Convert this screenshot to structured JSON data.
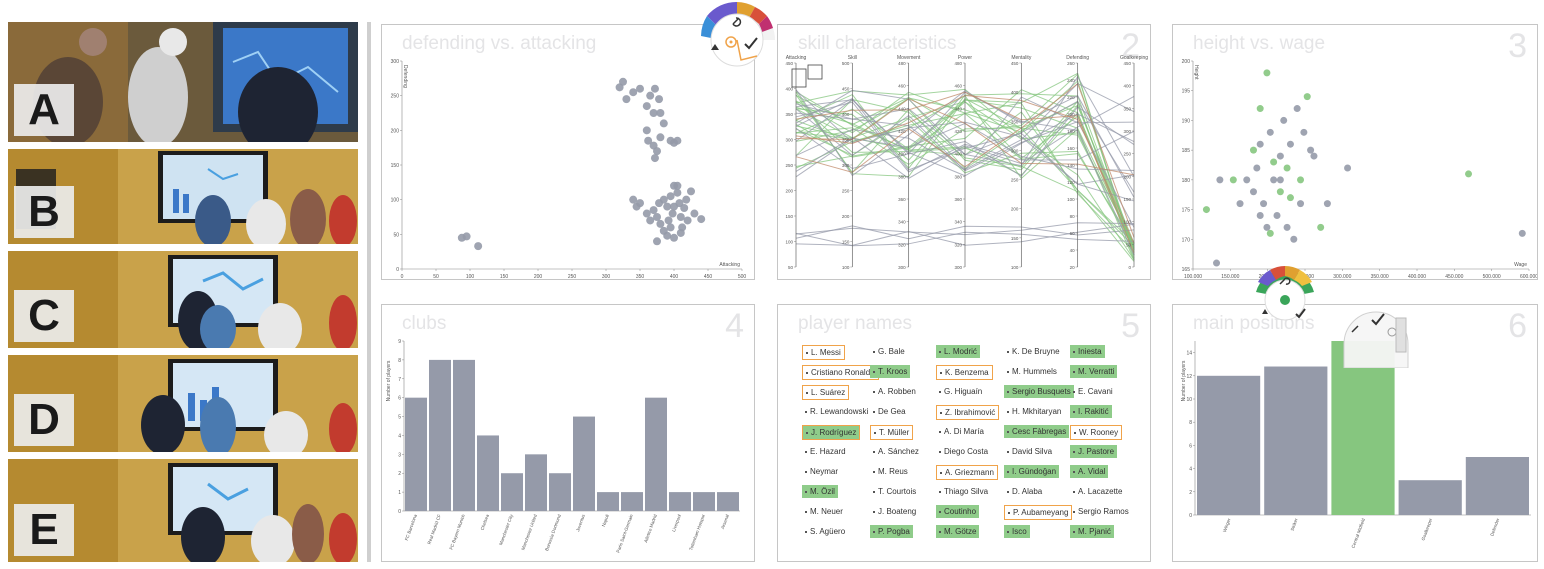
{
  "photos": [
    {
      "letter": "A",
      "top": 0
    },
    {
      "letter": "B"
    },
    {
      "letter": "C"
    },
    {
      "letter": "D"
    },
    {
      "letter": "E"
    }
  ],
  "panels": {
    "p1": {
      "title": "defending vs. attacking",
      "num": "1",
      "xlabel": "Attacking",
      "ylabel": "Defending",
      "xticks": [
        "0",
        "50",
        "100",
        "150",
        "200",
        "250",
        "300",
        "350",
        "400",
        "450",
        "500"
      ],
      "yticks": [
        "0",
        "50",
        "100",
        "150",
        "200",
        "250",
        "300"
      ]
    },
    "p2": {
      "title": "skill characteristics",
      "num": "2"
    },
    "p3": {
      "title": "height vs. wage",
      "num": "3",
      "xlabel": "Wage",
      "ylabel": "Height",
      "xticks": [
        "100.000",
        "150.000",
        "200.000",
        "250.000",
        "300.000",
        "350.000",
        "400.000",
        "450.000",
        "500.000",
        "600.000"
      ],
      "yticks": [
        "165",
        "170",
        "175",
        "180",
        "185",
        "190",
        "195",
        "200"
      ]
    },
    "p4": {
      "title": "clubs",
      "num": "4",
      "ylabel": "Number of players",
      "yticks": [
        "0",
        "1",
        "2",
        "3",
        "4",
        "5",
        "6",
        "7",
        "8",
        "9"
      ]
    },
    "p5": {
      "title": "player names",
      "num": "5"
    },
    "p6": {
      "title": "main positions",
      "num": "6",
      "ylabel": "Number of players",
      "yticks": [
        "0",
        "2",
        "4",
        "6",
        "8",
        "10",
        "12",
        "14"
      ]
    }
  },
  "parallel": {
    "axes": [
      {
        "name": "Attacking",
        "ticks": [
          "450",
          "400",
          "350",
          "300",
          "250",
          "200",
          "150",
          "100",
          "50"
        ]
      },
      {
        "name": "Skill",
        "ticks": [
          "500",
          "450",
          "400",
          "350",
          "300",
          "250",
          "200",
          "150",
          "100"
        ]
      },
      {
        "name": "Movement",
        "ticks": [
          "480",
          "460",
          "440",
          "420",
          "400",
          "380",
          "360",
          "340",
          "320",
          "300"
        ]
      },
      {
        "name": "Power",
        "ticks": [
          "480",
          "460",
          "440",
          "420",
          "400",
          "380",
          "360",
          "340",
          "320",
          "300"
        ]
      },
      {
        "name": "Mentality",
        "ticks": [
          "450",
          "400",
          "350",
          "300",
          "250",
          "200",
          "150",
          "100"
        ]
      },
      {
        "name": "Defending",
        "ticks": [
          "260",
          "240",
          "220",
          "200",
          "180",
          "160",
          "140",
          "120",
          "100",
          "80",
          "60",
          "40",
          "20"
        ]
      },
      {
        "name": "Goalkeeping",
        "ticks": [
          "450",
          "400",
          "350",
          "300",
          "250",
          "200",
          "150",
          "100",
          "50",
          "0"
        ]
      }
    ]
  },
  "chart_data": [
    {
      "type": "scatter",
      "title": "defending vs. attacking",
      "xlabel": "Attacking",
      "ylabel": "Defending",
      "xlim": [
        0,
        500
      ],
      "ylim": [
        0,
        300
      ],
      "points": [
        [
          88,
          45
        ],
        [
          95,
          47
        ],
        [
          112,
          33
        ],
        [
          320,
          262
        ],
        [
          325,
          270
        ],
        [
          330,
          245
        ],
        [
          340,
          255
        ],
        [
          350,
          260
        ],
        [
          360,
          235
        ],
        [
          365,
          250
        ],
        [
          370,
          225
        ],
        [
          372,
          260
        ],
        [
          378,
          245
        ],
        [
          385,
          210
        ],
        [
          360,
          200
        ],
        [
          362,
          185
        ],
        [
          370,
          178
        ],
        [
          372,
          160
        ],
        [
          375,
          170
        ],
        [
          380,
          190
        ],
        [
          395,
          185
        ],
        [
          400,
          182
        ],
        [
          405,
          185
        ],
        [
          380,
          225
        ],
        [
          340,
          100
        ],
        [
          345,
          90
        ],
        [
          350,
          95
        ],
        [
          360,
          80
        ],
        [
          365,
          70
        ],
        [
          370,
          85
        ],
        [
          375,
          75
        ],
        [
          378,
          95
        ],
        [
          380,
          65
        ],
        [
          385,
          100
        ],
        [
          390,
          90
        ],
        [
          392,
          70
        ],
        [
          395,
          105
        ],
        [
          398,
          80
        ],
        [
          400,
          120
        ],
        [
          405,
          110
        ],
        [
          408,
          95
        ],
        [
          410,
          75
        ],
        [
          412,
          60
        ],
        [
          415,
          88
        ],
        [
          418,
          100
        ],
        [
          420,
          70
        ],
        [
          425,
          112
        ],
        [
          430,
          80
        ],
        [
          440,
          72
        ],
        [
          385,
          55
        ],
        [
          390,
          48
        ],
        [
          400,
          45
        ],
        [
          410,
          52
        ],
        [
          375,
          40
        ],
        [
          395,
          60
        ],
        [
          405,
          120
        ],
        [
          400,
          90
        ]
      ]
    },
    {
      "type": "scatter",
      "title": "height vs. wage",
      "xlabel": "Wage",
      "ylabel": "Height",
      "xlim": [
        100000,
        600000
      ],
      "ylim": [
        165,
        200
      ],
      "points": [
        [
          120000,
          175
        ],
        [
          135000,
          166
        ],
        [
          140000,
          180
        ],
        [
          160000,
          180
        ],
        [
          170000,
          176
        ],
        [
          180000,
          180
        ],
        [
          190000,
          185
        ],
        [
          190000,
          178
        ],
        [
          195000,
          182
        ],
        [
          200000,
          192
        ],
        [
          200000,
          186
        ],
        [
          205000,
          176
        ],
        [
          210000,
          198
        ],
        [
          210000,
          172
        ],
        [
          215000,
          188
        ],
        [
          220000,
          183
        ],
        [
          220000,
          180
        ],
        [
          225000,
          174
        ],
        [
          230000,
          178
        ],
        [
          230000,
          184
        ],
        [
          235000,
          190
        ],
        [
          240000,
          182
        ],
        [
          240000,
          172
        ],
        [
          245000,
          186
        ],
        [
          245000,
          177
        ],
        [
          250000,
          170
        ],
        [
          255000,
          192
        ],
        [
          260000,
          180
        ],
        [
          260000,
          176
        ],
        [
          265000,
          188
        ],
        [
          270000,
          194
        ],
        [
          275000,
          185
        ],
        [
          280000,
          184
        ],
        [
          290000,
          172
        ],
        [
          300000,
          176
        ],
        [
          330000,
          182
        ],
        [
          510000,
          181
        ],
        [
          590000,
          171
        ],
        [
          200000,
          174
        ],
        [
          215000,
          171
        ],
        [
          230000,
          180
        ]
      ]
    },
    {
      "type": "bar",
      "title": "clubs",
      "ylabel": "Number of players",
      "ylim": [
        0,
        9
      ],
      "categories": [
        "FC Barcelona",
        "Real Madrid CF",
        "FC Bayern Munich",
        "Chelsea",
        "Manchester City",
        "Manchester United",
        "Borussia Dortmund",
        "Juventus",
        "Napoli",
        "Paris Saint-Germain",
        "Atletico Madrid",
        "Liverpool",
        "Tottenham Hotspur",
        "Arsenal"
      ],
      "values": [
        6,
        8,
        8,
        4,
        2,
        3,
        2,
        5,
        1,
        1,
        6,
        1,
        1,
        1
      ]
    },
    {
      "type": "bar",
      "title": "main positions",
      "ylabel": "Number of players",
      "ylim": [
        0,
        15
      ],
      "categories": [
        "Winger",
        "Striker",
        "Central Midfield",
        "Goalkeeper",
        "Defender"
      ],
      "values": [
        12,
        12.8,
        15,
        3,
        5
      ],
      "highlighted": "Central Midfield"
    }
  ],
  "names": {
    "columns": [
      [
        {
          "name": "L. Messi",
          "sel": true,
          "hl": false
        },
        {
          "name": "Cristiano Ronaldo",
          "sel": true,
          "hl": false
        },
        {
          "name": "L. Suárez",
          "sel": true,
          "hl": false
        },
        {
          "name": "R. Lewandowski",
          "sel": false,
          "hl": false
        },
        {
          "name": "J. Rodríguez",
          "sel": true,
          "hl": true
        },
        {
          "name": "E. Hazard",
          "sel": false,
          "hl": false
        },
        {
          "name": "Neymar",
          "sel": false,
          "hl": false
        },
        {
          "name": "M. Özil",
          "sel": false,
          "hl": true
        },
        {
          "name": "M. Neuer",
          "sel": false,
          "hl": false
        },
        {
          "name": "S. Agüero",
          "sel": false,
          "hl": false
        }
      ],
      [
        {
          "name": "G. Bale",
          "sel": false,
          "hl": false
        },
        {
          "name": "T. Kroos",
          "sel": false,
          "hl": true
        },
        {
          "name": "A. Robben",
          "sel": false,
          "hl": false
        },
        {
          "name": "De Gea",
          "sel": false,
          "hl": false
        },
        {
          "name": "T. Müller",
          "sel": true,
          "hl": false
        },
        {
          "name": "A. Sánchez",
          "sel": false,
          "hl": false
        },
        {
          "name": "M. Reus",
          "sel": false,
          "hl": false
        },
        {
          "name": "T. Courtois",
          "sel": false,
          "hl": false
        },
        {
          "name": "J. Boateng",
          "sel": false,
          "hl": false
        },
        {
          "name": "P. Pogba",
          "sel": false,
          "hl": true
        }
      ],
      [
        {
          "name": "L. Modrić",
          "sel": false,
          "hl": true
        },
        {
          "name": "K. Benzema",
          "sel": true,
          "hl": false
        },
        {
          "name": "G. Higuaín",
          "sel": false,
          "hl": false
        },
        {
          "name": "Z. Ibrahimović",
          "sel": true,
          "hl": false
        },
        {
          "name": "A. Di María",
          "sel": false,
          "hl": false
        },
        {
          "name": "Diego Costa",
          "sel": false,
          "hl": false
        },
        {
          "name": "A. Griezmann",
          "sel": true,
          "hl": false
        },
        {
          "name": "Thiago Silva",
          "sel": false,
          "hl": false
        },
        {
          "name": "Coutinho",
          "sel": false,
          "hl": true
        },
        {
          "name": "M. Götze",
          "sel": false,
          "hl": true
        }
      ],
      [
        {
          "name": "K. De Bruyne",
          "sel": false,
          "hl": false
        },
        {
          "name": "M. Hummels",
          "sel": false,
          "hl": false
        },
        {
          "name": "Sergio Busquets",
          "sel": false,
          "hl": true
        },
        {
          "name": "H. Mkhitaryan",
          "sel": false,
          "hl": false
        },
        {
          "name": "Cesc Fàbregas",
          "sel": false,
          "hl": true
        },
        {
          "name": "David Silva",
          "sel": false,
          "hl": false
        },
        {
          "name": "I. Gündoğan",
          "sel": false,
          "hl": true
        },
        {
          "name": "D. Alaba",
          "sel": false,
          "hl": false
        },
        {
          "name": "P. Aubameyang",
          "sel": true,
          "hl": false
        },
        {
          "name": "Isco",
          "sel": false,
          "hl": true
        }
      ],
      [
        {
          "name": "Iniesta",
          "sel": false,
          "hl": true
        },
        {
          "name": "M. Verratti",
          "sel": false,
          "hl": true
        },
        {
          "name": "E. Cavani",
          "sel": false,
          "hl": false
        },
        {
          "name": "I. Rakitić",
          "sel": false,
          "hl": true
        },
        {
          "name": "W. Rooney",
          "sel": true,
          "hl": false
        },
        {
          "name": "J. Pastore",
          "sel": false,
          "hl": true
        },
        {
          "name": "A. Vidal",
          "sel": false,
          "hl": true
        },
        {
          "name": "A. Lacazette",
          "sel": false,
          "hl": false
        },
        {
          "name": "Sergio Ramos",
          "sel": false,
          "hl": false
        },
        {
          "name": "M. Pjanić",
          "sel": false,
          "hl": true
        }
      ]
    ]
  },
  "colors": {
    "gray": "#959aa9",
    "green": "#86c67f",
    "orange": "#f0a34a",
    "light": "#e4e4e6"
  }
}
